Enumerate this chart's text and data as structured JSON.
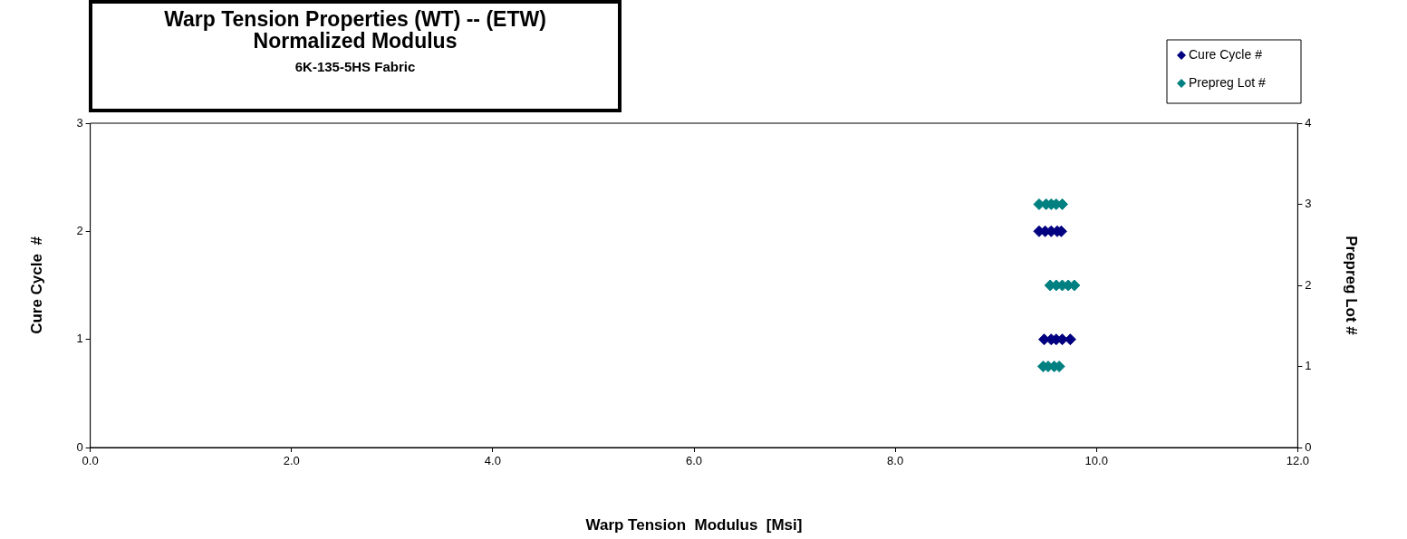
{
  "chart_data": {
    "type": "scatter",
    "title": "Warp Tension Properties (WT) --   (ETW)\nNormalized Modulus",
    "subtitle": "6K-135-5HS  Fabric",
    "xlabel": "Warp Tension  Modulus  [Msi]",
    "ylabel": "Cure Cycle  #",
    "y2label": "Prepreg Lot #",
    "xlim": [
      0,
      12
    ],
    "xticks": [
      {
        "value": 0,
        "label": "0.0"
      },
      {
        "value": 2,
        "label": "2.0"
      },
      {
        "value": 4,
        "label": "4.0"
      },
      {
        "value": 6,
        "label": "6.0"
      },
      {
        "value": 8,
        "label": "8.0"
      },
      {
        "value": 10,
        "label": "10.0"
      },
      {
        "value": 12,
        "label": "12.0"
      }
    ],
    "ylim": [
      0,
      3
    ],
    "yticks": [
      0,
      1,
      2,
      3
    ],
    "y2lim": [
      0,
      4
    ],
    "y2ticks": [
      0,
      1,
      2,
      3,
      4
    ],
    "grid": false,
    "legend": "top right",
    "marker": "diamond",
    "series": [
      {
        "name": "Cure Cycle #",
        "color": "#000080",
        "x": [
          9.43,
          9.49,
          9.55,
          9.61,
          9.65,
          9.48,
          9.55,
          9.6,
          9.66,
          9.74
        ],
        "values": [
          2,
          2,
          2,
          2,
          2,
          1,
          1,
          1,
          1,
          1
        ]
      },
      {
        "name": "Prepreg Lot #",
        "color": "#008080",
        "axis": "y2",
        "x": [
          9.43,
          9.5,
          9.55,
          9.6,
          9.66,
          9.54,
          9.6,
          9.66,
          9.72,
          9.78,
          9.47,
          9.52,
          9.58,
          9.63
        ],
        "values": [
          3,
          3,
          3,
          3,
          3,
          2,
          2,
          2,
          2,
          2,
          1,
          1,
          1,
          1
        ]
      }
    ]
  }
}
